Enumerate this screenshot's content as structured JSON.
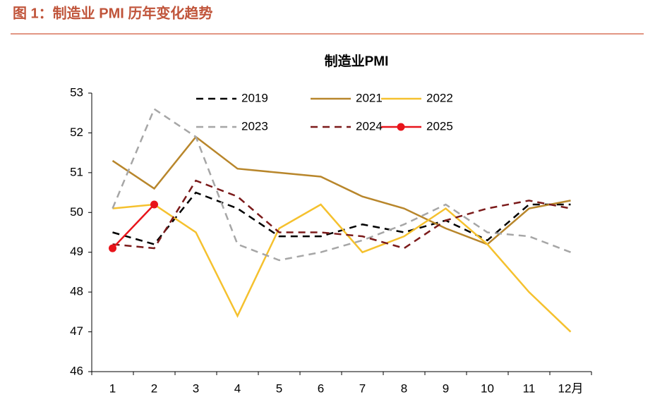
{
  "header": {
    "title": "图 1：制造业 PMI 历年变化趋势"
  },
  "chart_data": {
    "type": "line",
    "title": "制造业PMI",
    "categories": [
      "1",
      "2",
      "3",
      "4",
      "5",
      "6",
      "7",
      "8",
      "9",
      "10",
      "11",
      "12月"
    ],
    "ylim": [
      46,
      53
    ],
    "yticks": [
      46,
      47,
      48,
      49,
      50,
      51,
      52,
      53
    ],
    "series": [
      {
        "name": "2019",
        "color": "#000000",
        "style": "dashed",
        "values": [
          49.5,
          49.2,
          50.5,
          50.1,
          49.4,
          49.4,
          49.7,
          49.5,
          49.8,
          49.3,
          50.2,
          50.2
        ]
      },
      {
        "name": "2021",
        "color": "#b8862b",
        "style": "solid",
        "values": [
          51.3,
          50.6,
          51.9,
          51.1,
          51.0,
          50.9,
          50.4,
          50.1,
          49.6,
          49.2,
          50.1,
          50.3
        ]
      },
      {
        "name": "2022",
        "color": "#f5c12e",
        "style": "solid",
        "values": [
          50.1,
          50.2,
          49.5,
          47.4,
          49.6,
          50.2,
          49.0,
          49.4,
          50.1,
          49.2,
          48.0,
          47.0
        ]
      },
      {
        "name": "2023",
        "color": "#a6a6a6",
        "style": "dashed",
        "values": [
          50.1,
          52.6,
          51.9,
          49.2,
          48.8,
          49.0,
          49.3,
          49.7,
          50.2,
          49.5,
          49.4,
          49.0
        ]
      },
      {
        "name": "2024",
        "color": "#7b1a1a",
        "style": "dashed",
        "values": [
          49.2,
          49.1,
          50.8,
          50.4,
          49.5,
          49.5,
          49.4,
          49.1,
          49.8,
          50.1,
          50.3,
          50.1
        ]
      },
      {
        "name": "2025",
        "color": "#e8141b",
        "style": "solid",
        "marker": true,
        "values": [
          49.1,
          50.2,
          null,
          null,
          null,
          null,
          null,
          null,
          null,
          null,
          null,
          null
        ]
      }
    ]
  }
}
